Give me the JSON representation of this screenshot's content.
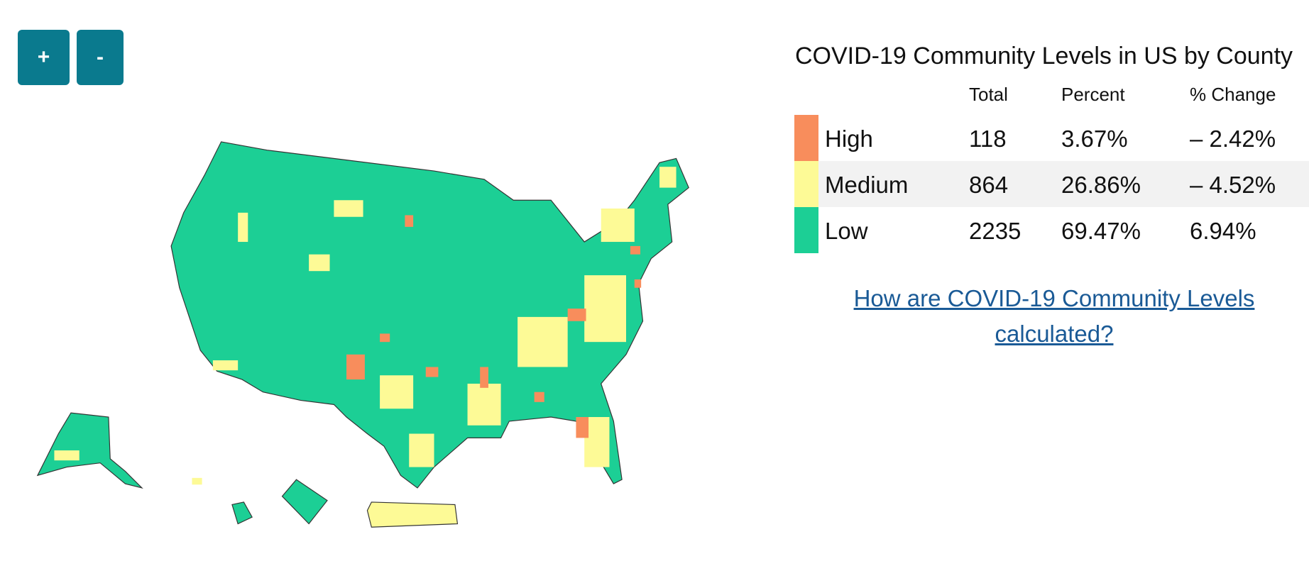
{
  "controls": {
    "zoom_in": "+",
    "zoom_out": "-"
  },
  "legend": {
    "title": "COVID-19 Community Levels in US by County",
    "columns": [
      "Total",
      "Percent",
      "% Change"
    ],
    "rows": [
      {
        "level": "High",
        "color": "#f88d5c",
        "total": 118,
        "percent": "3.67%",
        "change": "– 2.42%"
      },
      {
        "level": "Medium",
        "color": "#fdfa96",
        "total": 864,
        "percent": "26.86%",
        "change": "– 4.52%"
      },
      {
        "level": "Low",
        "color": "#1ccf95",
        "total": 2235,
        "percent": "69.47%",
        "change": "6.94%"
      }
    ]
  },
  "link": "How are COVID-19 Community Levels calculated?"
}
